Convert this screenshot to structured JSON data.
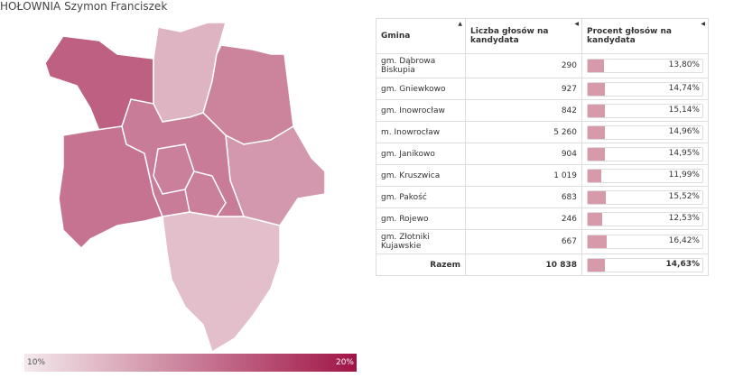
{
  "title": "HOŁOWNIA Szymon Franciszek",
  "legend": {
    "min": {
      "value": 10,
      "label": "10%"
    },
    "max": {
      "value": 20,
      "label": "20%"
    }
  },
  "table": {
    "headers": [
      "Gmina",
      "Liczba głosów na kandydata",
      "Procent głosów na kandydata"
    ],
    "rows": [
      {
        "name": "gm. Dąbrowa Biskupia",
        "votes": "290",
        "percent": {
          "value": 13.8,
          "label": "13,80%"
        }
      },
      {
        "name": "gm. Gniewkowo",
        "votes": "927",
        "percent": {
          "value": 14.74,
          "label": "14,74%"
        }
      },
      {
        "name": "gm. Inowrocław",
        "votes": "842",
        "percent": {
          "value": 15.14,
          "label": "15,14%"
        }
      },
      {
        "name": "m. Inowrocław",
        "votes": "5 260",
        "percent": {
          "value": 14.96,
          "label": "14,96%"
        }
      },
      {
        "name": "gm. Janikowo",
        "votes": "904",
        "percent": {
          "value": 14.95,
          "label": "14,95%"
        }
      },
      {
        "name": "gm. Kruszwica",
        "votes": "1 019",
        "percent": {
          "value": 11.99,
          "label": "11,99%"
        }
      },
      {
        "name": "gm. Pakość",
        "votes": "683",
        "percent": {
          "value": 15.52,
          "label": "15,52%"
        }
      },
      {
        "name": "gm. Rojewo",
        "votes": "246",
        "percent": {
          "value": 12.53,
          "label": "12,53%"
        }
      },
      {
        "name": "gm. Złotniki Kujawskie",
        "votes": "667",
        "percent": {
          "value": 16.42,
          "label": "16,42%"
        }
      }
    ],
    "total": {
      "name": "Razem",
      "votes": "10 838",
      "percent": {
        "value": 14.63,
        "label": "14,63%"
      }
    }
  }
}
